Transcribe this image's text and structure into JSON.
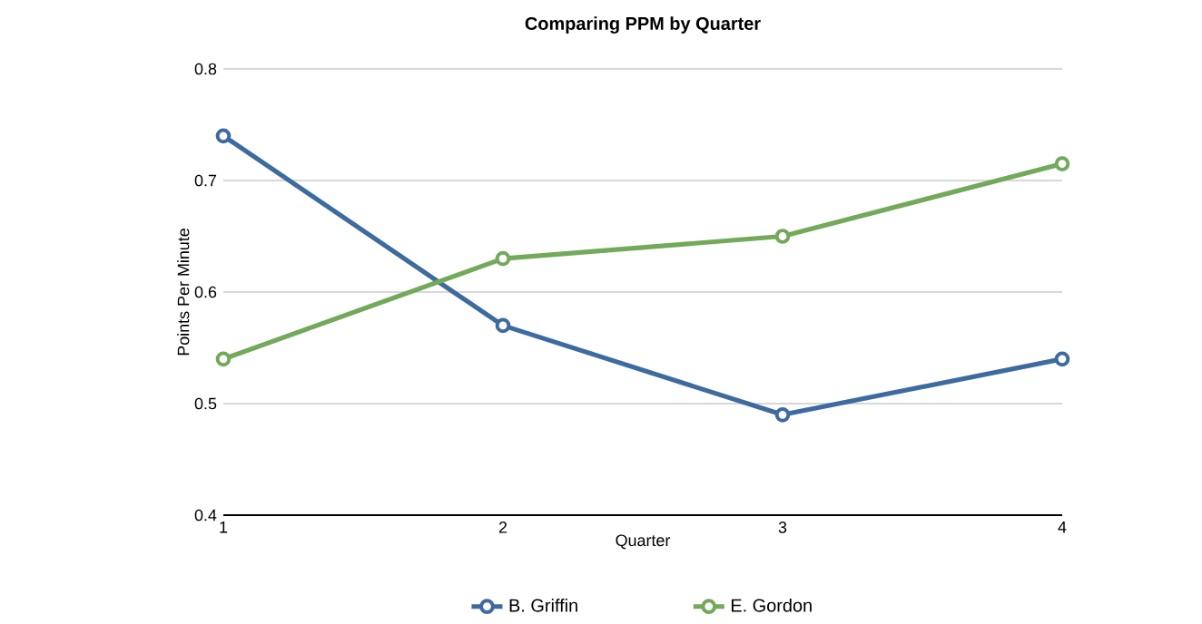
{
  "chart_data": {
    "type": "line",
    "title": "Comparing PPM by Quarter",
    "xlabel": "Quarter",
    "ylabel": "Points Per Minute",
    "x": [
      1,
      2,
      3,
      4
    ],
    "series": [
      {
        "name": "B. Griffin",
        "color": "#3e6b9f",
        "values": [
          0.74,
          0.57,
          0.49,
          0.54
        ]
      },
      {
        "name": "E. Gordon",
        "color": "#73a95b",
        "values": [
          0.54,
          0.63,
          0.65,
          0.715
        ]
      }
    ],
    "xlim": [
      1,
      4
    ],
    "xticks": [
      1,
      2,
      3,
      4
    ],
    "ylim": [
      0.4,
      0.8
    ],
    "yticks": [
      0.4,
      0.5,
      0.6,
      0.7,
      0.8
    ],
    "grid": "y",
    "legend": "bottom",
    "marker": "circle",
    "line_style": "solid"
  }
}
